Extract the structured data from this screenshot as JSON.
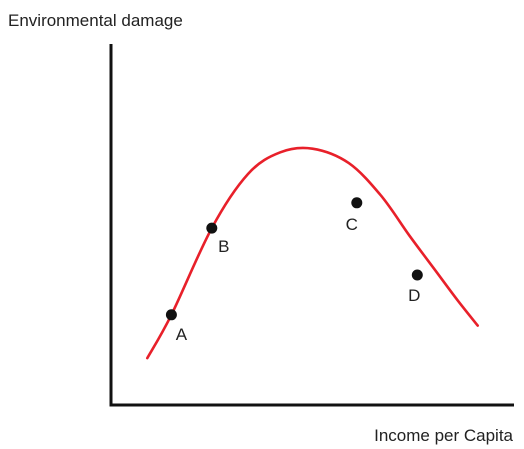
{
  "chart_data": {
    "type": "line",
    "title": "",
    "ylabel": "Environmental damage",
    "xlabel": "Income per Capita",
    "xlim": [
      0,
      10
    ],
    "ylim": [
      0,
      10
    ],
    "grid": false,
    "legend": "none",
    "curve_color": "#e8202a",
    "axis_color": "#111111",
    "point_color": "#111111",
    "series": [
      {
        "x": [
          0.9,
          1.5,
          2.5,
          3.4,
          4.2,
          5.0,
          5.9,
          6.7,
          7.4,
          8.0,
          8.6,
          9.1
        ],
        "y": [
          1.3,
          2.5,
          4.9,
          6.4,
          7.0,
          7.1,
          6.7,
          5.8,
          4.7,
          3.8,
          2.9,
          2.2
        ]
      }
    ],
    "points": [
      {
        "label": "A",
        "x": 1.5,
        "y": 2.5
      },
      {
        "label": "B",
        "x": 2.5,
        "y": 4.9
      },
      {
        "label": "C",
        "x": 6.1,
        "y": 5.6
      },
      {
        "label": "D",
        "x": 7.6,
        "y": 3.6
      }
    ]
  }
}
